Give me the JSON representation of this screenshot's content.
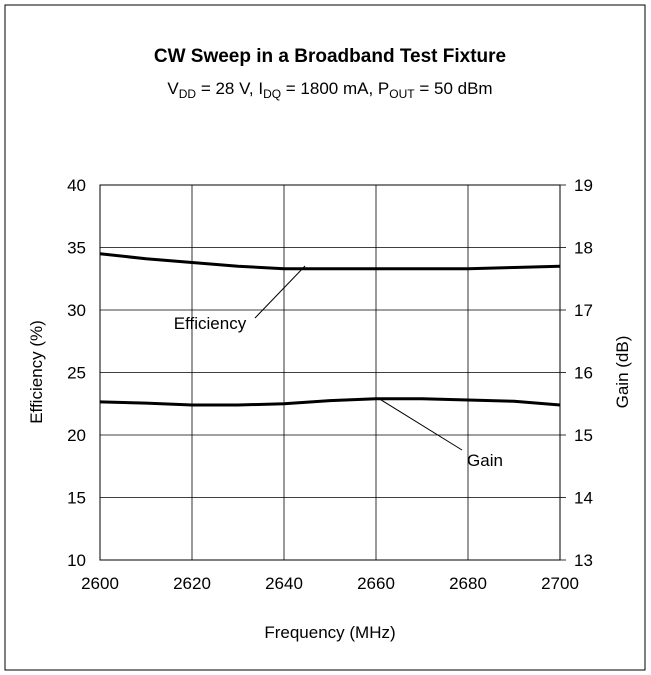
{
  "chart_data": {
    "type": "line",
    "title": "CW Sweep in a Broadband Test Fixture",
    "subtitle_parts": [
      "V",
      "DD",
      " = 28 V, I",
      "DQ",
      " = 1800 mA, P",
      "OUT",
      " = 50 dBm"
    ],
    "x_label": "Frequency (MHz)",
    "y_label": "Efficiency (%)",
    "y2_label": "Gain (dB)",
    "x": [
      2600,
      2610,
      2620,
      2630,
      2640,
      2650,
      2660,
      2670,
      2680,
      2690,
      2700
    ],
    "series": [
      {
        "name": "Efficiency",
        "color": "#000000",
        "axis": "y",
        "values": [
          34.5,
          34.1,
          33.8,
          33.5,
          33.3,
          33.3,
          33.3,
          33.3,
          33.3,
          33.4,
          33.5
        ]
      },
      {
        "name": "Gain",
        "color": "#000000",
        "axis": "y2",
        "values": [
          15.53,
          15.51,
          15.48,
          15.48,
          15.5,
          15.55,
          15.58,
          15.58,
          15.56,
          15.54,
          15.48
        ]
      }
    ],
    "xlim": [
      2600,
      2700
    ],
    "xticks": [
      2600,
      2620,
      2640,
      2660,
      2680,
      2700
    ],
    "ylim": [
      10,
      40
    ],
    "yticks": [
      10,
      15,
      20,
      25,
      30,
      35,
      40
    ],
    "y2lim": [
      13,
      19
    ],
    "y2ticks": [
      13,
      14,
      15,
      16,
      17,
      18,
      19
    ],
    "grid": true
  }
}
